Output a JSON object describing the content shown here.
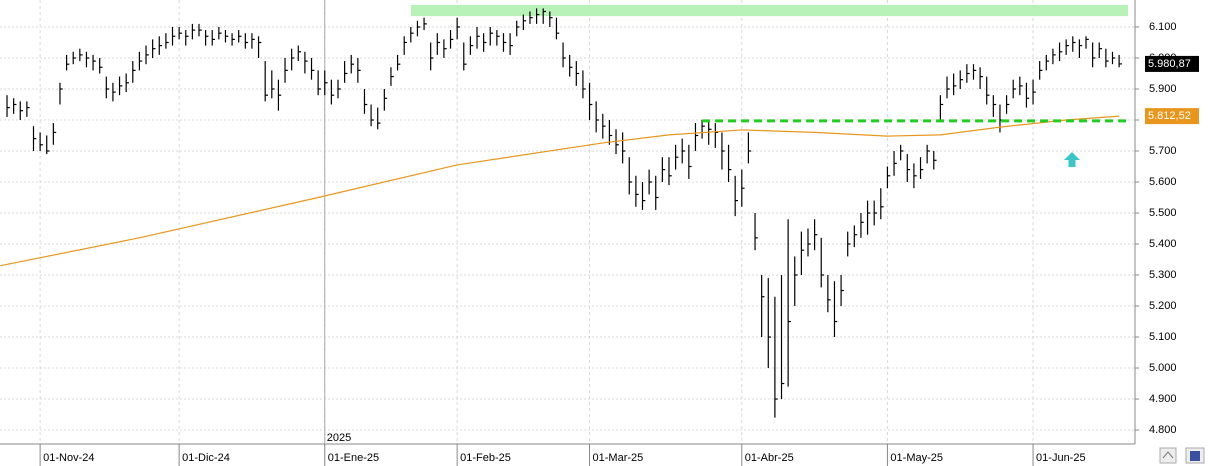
{
  "chart_data": {
    "type": "ohlc",
    "xlim": [
      -1.06,
      170.4
    ],
    "ylim": [
      4755,
      6187
    ],
    "yticks": [
      {
        "value": 4800,
        "label": "4.800"
      },
      {
        "value": 4900,
        "label": "4.900"
      },
      {
        "value": 5000,
        "label": "5.000"
      },
      {
        "value": 5100,
        "label": "5.100"
      },
      {
        "value": 5200,
        "label": "5.200"
      },
      {
        "value": 5300,
        "label": "5.300"
      },
      {
        "value": 5400,
        "label": "5.400"
      },
      {
        "value": 5500,
        "label": "5.500"
      },
      {
        "value": 5600,
        "label": "5.600"
      },
      {
        "value": 5700,
        "label": "5.700"
      },
      {
        "value": 5800,
        "label": "5.800"
      },
      {
        "value": 5900,
        "label": "5.900"
      },
      {
        "value": 6000,
        "label": "6.000"
      },
      {
        "value": 6100,
        "label": "6.100"
      }
    ],
    "xticks": [
      {
        "value": 5,
        "label": "01-Nov-24"
      },
      {
        "value": 26,
        "label": "01-Dic-24"
      },
      {
        "value": 48,
        "label": "01-Ene-25"
      },
      {
        "value": 68,
        "label": "01-Feb-25"
      },
      {
        "value": 88,
        "label": "01-Mar-25"
      },
      {
        "value": 111,
        "label": "01-Abr-25"
      },
      {
        "value": 133,
        "label": "01-May-25"
      },
      {
        "value": 155,
        "label": "01-Jun-25"
      }
    ],
    "year_marker": {
      "x": 48,
      "label": "2025"
    },
    "grid": true,
    "color": "#000000",
    "high": [
      5880,
      5870,
      5860,
      5860,
      5780,
      5760,
      5750,
      5790,
      5920,
      6010,
      6020,
      6030,
      6020,
      6010,
      6000,
      5940,
      5920,
      5940,
      5950,
      5990,
      6020,
      6040,
      6060,
      6070,
      6080,
      6100,
      6100,
      6090,
      6110,
      6110,
      6090,
      6090,
      6100,
      6090,
      6080,
      6090,
      6080,
      6080,
      6070,
      5990,
      5960,
      5930,
      6000,
      6030,
      6040,
      6020,
      6000,
      5960,
      5960,
      5930,
      5930,
      5990,
      6010,
      6000,
      5900,
      5850,
      5840,
      5900,
      5970,
      6010,
      6070,
      6100,
      6120,
      6130,
      6050,
      6080,
      6060,
      6090,
      6130,
      6050,
      6070,
      6100,
      6080,
      6100,
      6090,
      6080,
      6080,
      6120,
      6140,
      6150,
      6160,
      6160,
      6150,
      6130,
      6050,
      6010,
      5990,
      5960,
      5920,
      5860,
      5820,
      5800,
      5770,
      5760,
      5680,
      5620,
      5600,
      5640,
      5620,
      5680,
      5680,
      5720,
      5740,
      5720,
      5790,
      5800,
      5800,
      5790,
      5760,
      5720,
      5620,
      5640,
      5760,
      5500,
      5300,
      5290,
      5230,
      5300,
      5480,
      5360,
      5440,
      5450,
      5480,
      5420,
      5300,
      5280,
      5300,
      5440,
      5460,
      5500,
      5540,
      5540,
      5580,
      5650,
      5700,
      5720,
      5690,
      5660,
      5680,
      5720,
      5700,
      5880,
      5940,
      5950,
      5960,
      5980,
      5980,
      5970,
      5940,
      5880,
      5850,
      5880,
      5930,
      5940,
      5920,
      5930,
      5990,
      6010,
      6030,
      6050,
      6060,
      6070,
      6060,
      6070,
      6050,
      6050,
      6030,
      6020,
      6010
    ],
    "low": [
      5810,
      5820,
      5800,
      5810,
      5700,
      5700,
      5690,
      5720,
      5850,
      5960,
      5980,
      5990,
      5970,
      5960,
      5950,
      5870,
      5860,
      5880,
      5890,
      5920,
      5960,
      5980,
      6000,
      6010,
      6030,
      6040,
      6060,
      6040,
      6060,
      6070,
      6040,
      6040,
      6060,
      6050,
      6040,
      6050,
      6030,
      6030,
      6000,
      5860,
      5870,
      5830,
      5920,
      5960,
      5990,
      5950,
      5930,
      5880,
      5880,
      5850,
      5870,
      5920,
      5950,
      5920,
      5820,
      5780,
      5770,
      5830,
      5910,
      5960,
      6010,
      6050,
      6070,
      6090,
      5960,
      6010,
      6000,
      6030,
      6060,
      5960,
      6010,
      6030,
      6020,
      6040,
      6040,
      6020,
      6010,
      6070,
      6090,
      6110,
      6110,
      6110,
      6100,
      6060,
      5970,
      5940,
      5910,
      5870,
      5800,
      5760,
      5740,
      5720,
      5690,
      5660,
      5560,
      5520,
      5510,
      5560,
      5510,
      5600,
      5590,
      5640,
      5660,
      5610,
      5700,
      5740,
      5720,
      5710,
      5640,
      5600,
      5490,
      5520,
      5660,
      5380,
      5100,
      5000,
      4840,
      4900,
      4940,
      5200,
      5300,
      5360,
      5380,
      5260,
      5180,
      5100,
      5200,
      5360,
      5390,
      5420,
      5430,
      5460,
      5480,
      5580,
      5620,
      5670,
      5600,
      5580,
      5610,
      5660,
      5640,
      5800,
      5870,
      5880,
      5900,
      5920,
      5930,
      5900,
      5850,
      5810,
      5760,
      5820,
      5870,
      5880,
      5840,
      5850,
      5930,
      5960,
      5980,
      5990,
      6010,
      6020,
      6000,
      6030,
      5970,
      6000,
      5970,
      5980,
      5970
    ],
    "close": [
      5840,
      5850,
      5830,
      5840,
      5740,
      5720,
      5700,
      5760,
      5900,
      5980,
      6000,
      6010,
      6000,
      5990,
      5970,
      5900,
      5890,
      5910,
      5920,
      5960,
      5990,
      6010,
      6030,
      6040,
      6050,
      6070,
      6080,
      6070,
      6090,
      6090,
      6070,
      6060,
      6080,
      6070,
      6060,
      6070,
      6050,
      6060,
      6050,
      5880,
      5900,
      5880,
      5960,
      6000,
      6020,
      5990,
      5960,
      5900,
      5920,
      5880,
      5900,
      5950,
      5980,
      5960,
      5850,
      5800,
      5790,
      5870,
      5940,
      5980,
      6050,
      6080,
      6100,
      6110,
      6000,
      6050,
      6030,
      6060,
      6100,
      5980,
      6040,
      6070,
      6050,
      6080,
      6070,
      6050,
      6040,
      6100,
      6120,
      6130,
      6140,
      6150,
      6130,
      6080,
      6000,
      5970,
      5950,
      5900,
      5850,
      5800,
      5780,
      5750,
      5720,
      5700,
      5600,
      5560,
      5540,
      5600,
      5550,
      5640,
      5620,
      5680,
      5700,
      5650,
      5750,
      5780,
      5770,
      5760,
      5700,
      5640,
      5540,
      5580,
      5700,
      5420,
      5230,
      5100,
      4900,
      4950,
      5150,
      5300,
      5380,
      5400,
      5430,
      5300,
      5220,
      5150,
      5250,
      5400,
      5430,
      5470,
      5500,
      5500,
      5520,
      5620,
      5660,
      5700,
      5640,
      5620,
      5640,
      5700,
      5670,
      5850,
      5900,
      5910,
      5930,
      5950,
      5960,
      5940,
      5880,
      5850,
      5800,
      5850,
      5900,
      5910,
      5870,
      5890,
      5960,
      5990,
      6010,
      6020,
      6040,
      6050,
      6040,
      6060,
      6000,
      6030,
      5990,
      6000,
      5980.87
    ],
    "last_price_label": "5.980,87",
    "moving_average": {
      "color": "#e8961e",
      "x": [
        -1,
        20,
        47,
        68,
        90,
        100,
        111,
        122,
        133,
        141,
        150,
        160,
        168
      ],
      "values": [
        5330,
        5420,
        5550,
        5655,
        5726,
        5752,
        5768,
        5760,
        5748,
        5752,
        5777,
        5800,
        5812.52
      ],
      "label": "5.812,52"
    },
    "resistance_zone": {
      "from_x": 61,
      "low": 6135,
      "high": 6171,
      "color": "#b9f2b9"
    },
    "support_line": {
      "from_x": 105,
      "value": 5797,
      "color": "#22cc22"
    }
  }
}
